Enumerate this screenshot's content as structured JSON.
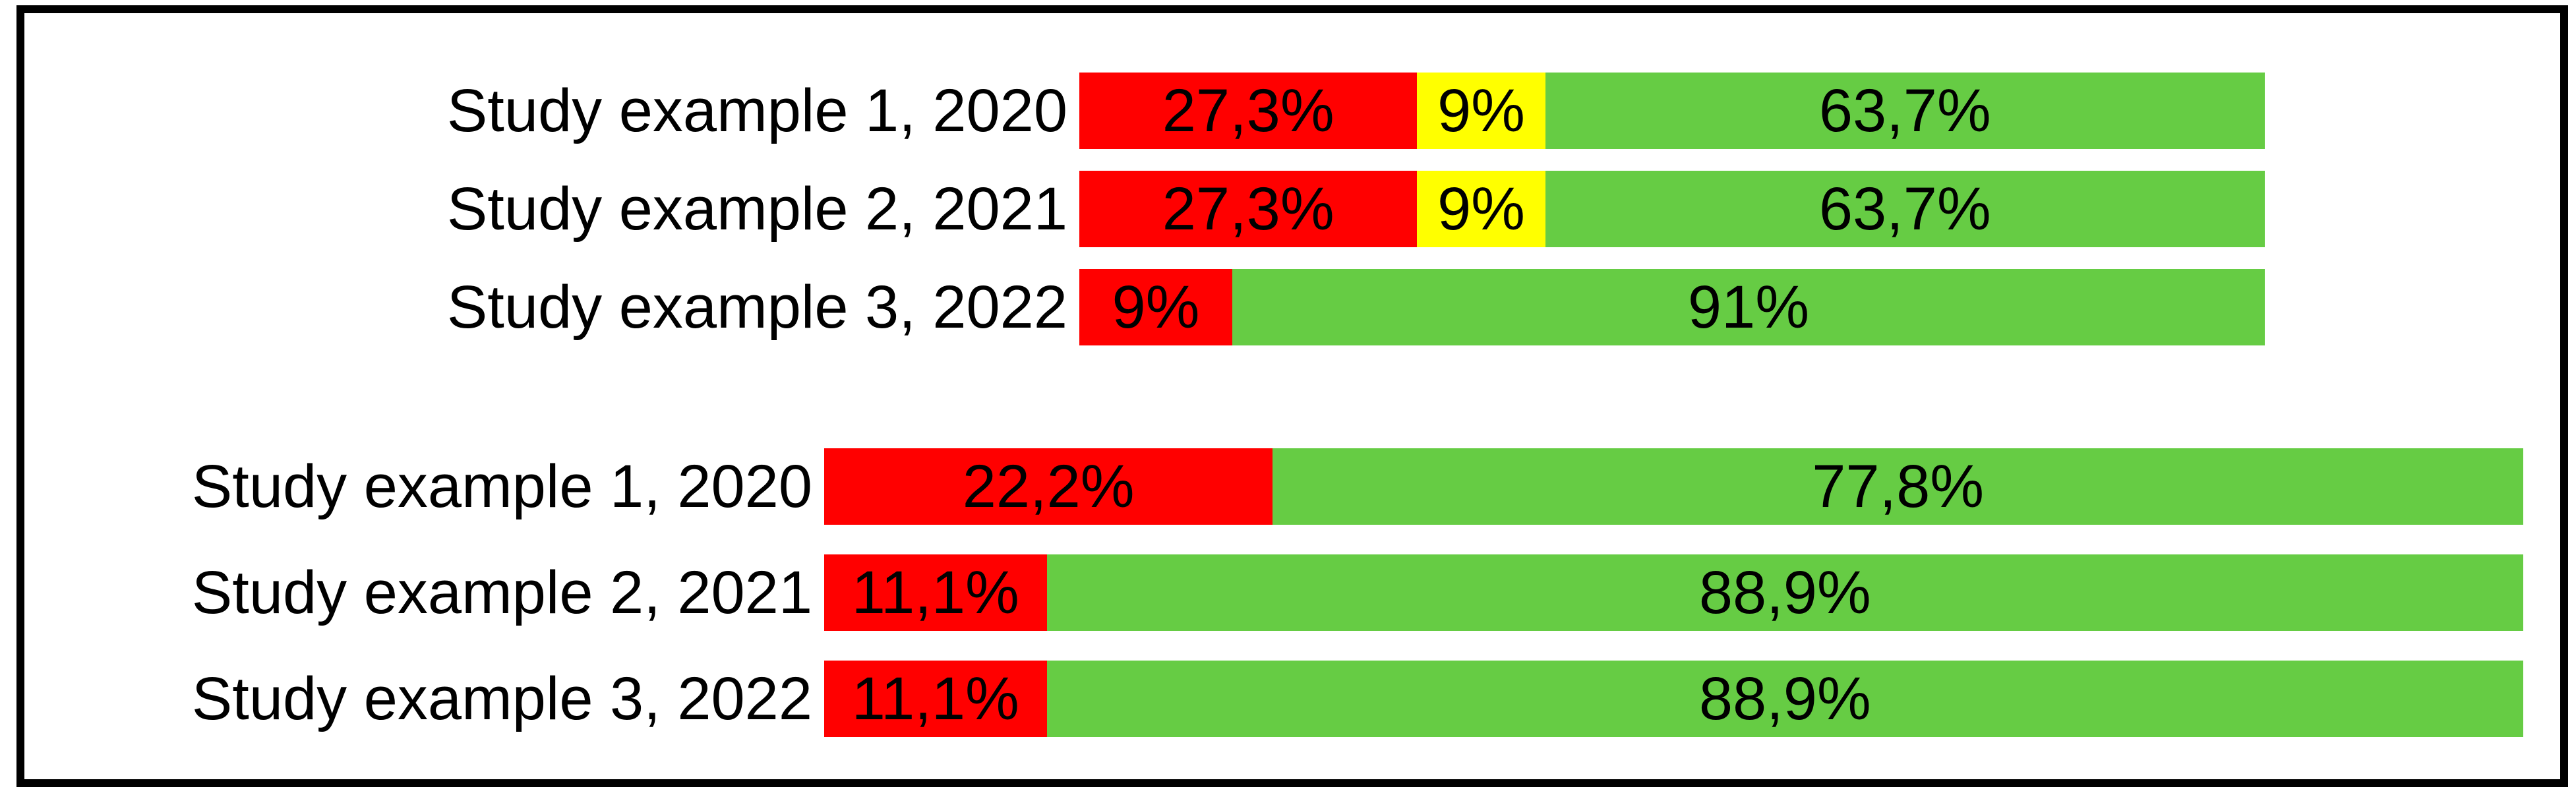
{
  "colors": {
    "red": "#FF0000",
    "yellow": "#FFFF00",
    "green": "#66CC44",
    "frame": "#000000",
    "background": "#FFFFFF",
    "text": "#000000"
  },
  "chart_data": [
    {
      "type": "bar",
      "orientation": "horizontal",
      "stacked": true,
      "unit": "%",
      "decimal_separator": ",",
      "grid": false,
      "legend": "none",
      "axes_visible": false,
      "xlim": [
        0,
        100
      ],
      "categories": [
        "Study example 1, 2020",
        "Study example 2, 2021",
        "Study example 3, 2022"
      ],
      "series": [
        {
          "name": "red",
          "color": "#FF0000",
          "values": [
            27.3,
            27.3,
            9
          ]
        },
        {
          "name": "yellow",
          "color": "#FFFF00",
          "values": [
            9,
            9,
            0
          ]
        },
        {
          "name": "green",
          "color": "#66CC44",
          "values": [
            63.7,
            63.7,
            91
          ]
        }
      ]
    },
    {
      "type": "bar",
      "orientation": "horizontal",
      "stacked": true,
      "unit": "%",
      "decimal_separator": ",",
      "grid": false,
      "legend": "none",
      "axes_visible": false,
      "xlim": [
        0,
        100
      ],
      "categories": [
        "Study example 1, 2020",
        "Study example 2, 2021",
        "Study example 3, 2022"
      ],
      "series": [
        {
          "name": "red",
          "color": "#FF0000",
          "values": [
            22.2,
            11.1,
            11.1
          ]
        },
        {
          "name": "green",
          "color": "#66CC44",
          "values": [
            77.8,
            88.9,
            88.9
          ]
        }
      ]
    }
  ],
  "render": {
    "charts": [
      {
        "id": "top",
        "rows": [
          {
            "label": "Study example 1, 2020",
            "segments": [
              {
                "color": "red",
                "text": "27,3%",
                "width_pct": 28.5
              },
              {
                "color": "yellow",
                "text": "9%",
                "width_pct": 10.8
              },
              {
                "color": "green",
                "text": "63,7%",
                "width_pct": 60.7
              }
            ]
          },
          {
            "label": "Study example 2, 2021",
            "segments": [
              {
                "color": "red",
                "text": "27,3%",
                "width_pct": 28.5
              },
              {
                "color": "yellow",
                "text": "9%",
                "width_pct": 10.8
              },
              {
                "color": "green",
                "text": "63,7%",
                "width_pct": 60.7
              }
            ]
          },
          {
            "label": "Study example 3, 2022",
            "segments": [
              {
                "color": "red",
                "text": "9%",
                "width_pct": 12.9
              },
              {
                "color": "green",
                "text": "91%",
                "width_pct": 87.1
              }
            ]
          }
        ]
      },
      {
        "id": "bottom",
        "rows": [
          {
            "label": "Study example 1, 2020",
            "segments": [
              {
                "color": "red",
                "text": "22,2%",
                "width_pct": 26.4
              },
              {
                "color": "green",
                "text": "77,8%",
                "width_pct": 73.6
              }
            ]
          },
          {
            "label": "Study example 2, 2021",
            "segments": [
              {
                "color": "red",
                "text": "11,1%",
                "width_pct": 13.1
              },
              {
                "color": "green",
                "text": "88,9%",
                "width_pct": 86.9
              }
            ]
          },
          {
            "label": "Study example 3, 2022",
            "segments": [
              {
                "color": "red",
                "text": "11,1%",
                "width_pct": 13.1
              },
              {
                "color": "green",
                "text": "88,9%",
                "width_pct": 86.9
              }
            ]
          }
        ]
      }
    ]
  }
}
